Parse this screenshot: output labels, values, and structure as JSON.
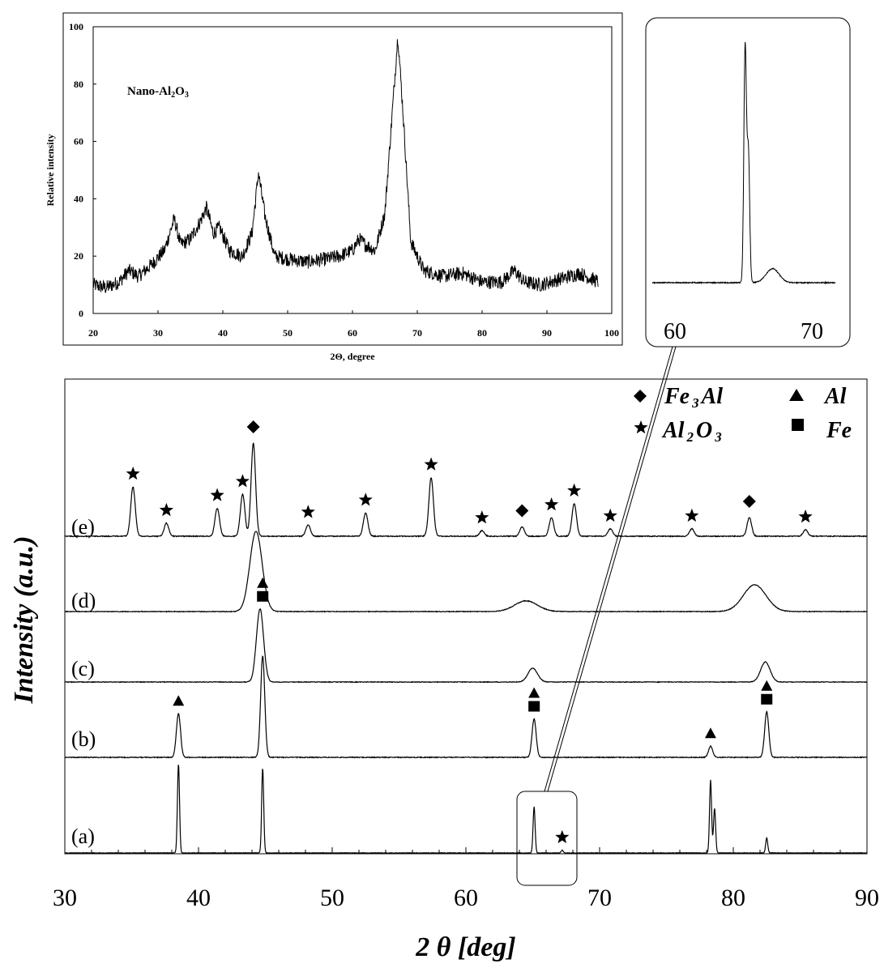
{
  "inset": {
    "title": "Nano-Al₂O₃",
    "title_main": "Nano-Al",
    "title_sub1": "2",
    "title_o": "O",
    "title_sub2": "3",
    "xlabel": "2Θ, degree",
    "ylabel": "Relative intensity",
    "xticks": [
      "20",
      "30",
      "40",
      "50",
      "60",
      "70",
      "80",
      "90",
      "100"
    ],
    "yticks": [
      "0",
      "20",
      "40",
      "60",
      "80",
      "100"
    ]
  },
  "zoom": {
    "ticks": [
      "60",
      "70"
    ]
  },
  "main": {
    "xlabel": "2 θ [deg]",
    "ylabel": "Intensity (a.u.)",
    "xticks": [
      "30",
      "40",
      "50",
      "60",
      "70",
      "80",
      "90"
    ],
    "legend": [
      {
        "symbol": "diamond",
        "main": "Fe",
        "sub": "3",
        "rest": "Al"
      },
      {
        "symbol": "star",
        "main": "Al",
        "sub": "2",
        "rest": "O",
        "sub2": "3"
      },
      {
        "symbol": "triangle",
        "main": "Al"
      },
      {
        "symbol": "square",
        "main": "Fe"
      }
    ],
    "curve_labels": [
      "(e)",
      "(d)",
      "(c)",
      "(b)",
      "(a)"
    ]
  },
  "chart_data": [
    {
      "type": "line",
      "title": "Nano-Al₂O₃",
      "xlabel": "2Θ, degree",
      "ylabel": "Relative intensity",
      "xlim": [
        20,
        100
      ],
      "ylim": [
        0,
        100
      ],
      "grid": false,
      "series": [
        {
          "x": [
            20,
            22,
            24,
            25.5,
            27,
            29,
            31,
            32.5,
            33.5,
            35,
            36.5,
            37.5,
            38.5,
            39.5,
            41,
            43,
            44.5,
            45.5,
            46.5,
            48,
            50,
            53,
            56,
            58,
            60,
            61,
            62,
            63.5,
            65,
            66.3,
            67,
            67.8,
            69,
            71,
            74,
            77,
            80,
            83,
            85,
            86.5,
            89,
            92,
            95,
            97,
            98
          ],
          "y": [
            10,
            9,
            11,
            15,
            13,
            17,
            22,
            33,
            24,
            26,
            32,
            37,
            28,
            30,
            22,
            20,
            28,
            49,
            34,
            20,
            19,
            18,
            19,
            20,
            22,
            26,
            24,
            22,
            35,
            75,
            97,
            70,
            25,
            15,
            13,
            14,
            11,
            11,
            15,
            11,
            10,
            12,
            14,
            12,
            11
          ]
        }
      ]
    },
    {
      "type": "line",
      "xlabel": "2 θ [deg]",
      "ylabel": "Intensity (a.u.)",
      "xlim": [
        30,
        90
      ],
      "grid": false,
      "series": [
        {
          "name": "(a)",
          "peaks": [
            [
              38.5,
              1.0
            ],
            [
              44.8,
              0.95
            ],
            [
              65.1,
              0.52
            ],
            [
              67.2,
              0.03
            ],
            [
              78.3,
              0.82
            ],
            [
              78.6,
              0.5
            ],
            [
              82.5,
              0.17
            ]
          ]
        },
        {
          "name": "(b)",
          "peaks": [
            [
              38.5,
              0.43
            ],
            [
              44.8,
              1.0
            ],
            [
              65.1,
              0.38
            ],
            [
              78.3,
              0.11
            ],
            [
              82.5,
              0.45
            ]
          ]
        },
        {
          "name": "(c)",
          "peaks": [
            [
              44.6,
              0.95
            ],
            [
              65.0,
              0.18
            ],
            [
              82.4,
              0.26
            ]
          ]
        },
        {
          "name": "(d)",
          "peaks": [
            [
              44.3,
              0.9
            ],
            [
              64.5,
              0.12
            ],
            [
              81.6,
              0.3
            ]
          ]
        },
        {
          "name": "(e)",
          "peaks": [
            [
              35.1,
              0.53
            ],
            [
              37.6,
              0.14
            ],
            [
              41.4,
              0.3
            ],
            [
              43.3,
              0.45
            ],
            [
              44.1,
              1.0
            ],
            [
              48.2,
              0.12
            ],
            [
              52.5,
              0.25
            ],
            [
              57.4,
              0.63
            ],
            [
              61.2,
              0.06
            ],
            [
              64.2,
              0.1
            ],
            [
              66.4,
              0.2
            ],
            [
              68.1,
              0.35
            ],
            [
              70.8,
              0.08
            ],
            [
              76.9,
              0.08
            ],
            [
              81.2,
              0.2
            ],
            [
              85.4,
              0.07
            ]
          ]
        }
      ],
      "annotations": [
        {
          "curve": "(e)",
          "x": 35.1,
          "marker": "star"
        },
        {
          "curve": "(e)",
          "x": 37.6,
          "marker": "star"
        },
        {
          "curve": "(e)",
          "x": 41.4,
          "marker": "star"
        },
        {
          "curve": "(e)",
          "x": 43.3,
          "marker": "star"
        },
        {
          "curve": "(e)",
          "x": 44.1,
          "marker": "diamond"
        },
        {
          "curve": "(e)",
          "x": 48.2,
          "marker": "star"
        },
        {
          "curve": "(e)",
          "x": 52.5,
          "marker": "star"
        },
        {
          "curve": "(e)",
          "x": 57.4,
          "marker": "star"
        },
        {
          "curve": "(e)",
          "x": 61.2,
          "marker": "star"
        },
        {
          "curve": "(e)",
          "x": 64.2,
          "marker": "diamond"
        },
        {
          "curve": "(e)",
          "x": 66.4,
          "marker": "star"
        },
        {
          "curve": "(e)",
          "x": 68.1,
          "marker": "star"
        },
        {
          "curve": "(e)",
          "x": 70.8,
          "marker": "star"
        },
        {
          "curve": "(e)",
          "x": 76.9,
          "marker": "star"
        },
        {
          "curve": "(e)",
          "x": 81.2,
          "marker": "diamond"
        },
        {
          "curve": "(e)",
          "x": 85.4,
          "marker": "star"
        },
        {
          "curve": "(c)",
          "x": 44.8,
          "marker": "triangle+square"
        },
        {
          "curve": "(b)",
          "x": 38.5,
          "marker": "triangle"
        },
        {
          "curve": "(b)",
          "x": 65.1,
          "marker": "triangle+square"
        },
        {
          "curve": "(b)",
          "x": 78.3,
          "marker": "triangle"
        },
        {
          "curve": "(b)",
          "x": 82.5,
          "marker": "triangle+square"
        },
        {
          "curve": "(a)",
          "x": 67.2,
          "marker": "star"
        }
      ]
    },
    {
      "type": "line",
      "xlim": [
        58,
        72
      ],
      "series": [
        {
          "name": "zoom (a)",
          "peaks": [
            [
              65.1,
              1.0
            ],
            [
              65.35,
              0.55
            ],
            [
              67.2,
              0.06
            ]
          ]
        }
      ]
    }
  ]
}
